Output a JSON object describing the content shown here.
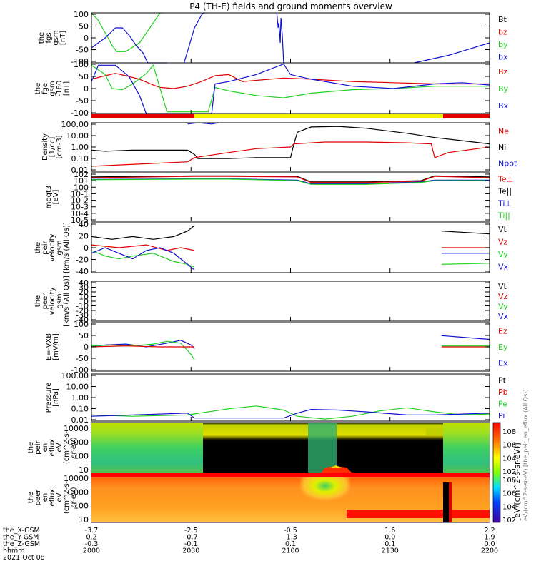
{
  "title": "P4 (TH-E) fields and ground moments overview",
  "footer": {
    "row_labels": [
      "the_X-GSM",
      "the_Y-GSM",
      "the_Z-GSM",
      "hhmm",
      "2021 Oct 08"
    ],
    "columns": [
      [
        "-3.7",
        "0.2",
        "-0.3",
        "2000"
      ],
      [
        "-2.5",
        "-0.7",
        "-0.1",
        "2030"
      ],
      [
        "-0.5",
        "-1.3",
        "0.1",
        "2100"
      ],
      [
        "1.6",
        "0.0",
        "0.1",
        "2130"
      ],
      [
        "2.2",
        "1.9",
        "0.0",
        "2200"
      ]
    ]
  },
  "colorbar": {
    "label": "[eV/(cm^2-s-sr-eV)]",
    "label_top": "eV/(cm^2-s-sr-eV) [the_peir_en_eflux (All Qs)]",
    "ticks_top": [
      "10^8",
      "10^6",
      "10^4",
      "10^2"
    ],
    "ticks_bottom": [
      "10^8",
      "10^6",
      "10^4",
      "10^2"
    ]
  },
  "colors": {
    "black": "#000000",
    "red": "#e00000",
    "green": "#20d020",
    "blue": "#1010d0",
    "yellow": "#f0f000"
  },
  "chart_data": [
    {
      "type": "line",
      "ylabel": [
        "the",
        "fgs",
        "gsm",
        "[nT]"
      ],
      "yticks": [
        "100",
        "50",
        "0",
        "-50",
        "-100"
      ],
      "ylim": [
        -100,
        100
      ],
      "legend": [
        {
          "name": "Bt",
          "color": "black"
        },
        {
          "name": "bz",
          "color": "red"
        },
        {
          "name": "by",
          "color": "green"
        },
        {
          "name": "bx",
          "color": "blue"
        }
      ],
      "series": [
        {
          "name": "by",
          "color": "green",
          "x": [
            0,
            10,
            20,
            30,
            37,
            50,
            70,
            80,
            90,
            100,
            106
          ],
          "values": [
            100,
            70,
            20,
            -30,
            -55,
            -55,
            -20,
            20,
            60,
            100,
            100
          ]
        },
        {
          "name": "bx",
          "color": "blue",
          "x": [
            0,
            20,
            35,
            45,
            55,
            65,
            75,
            82,
            90,
            100,
            110
          ],
          "values": [
            -40,
            0,
            40,
            40,
            10,
            -30,
            -60,
            -100,
            -100,
            -100,
            -100
          ]
        },
        {
          "name": "bx",
          "color": "blue",
          "x": [
            135,
            150,
            160,
            163,
            168
          ],
          "values": [
            -100,
            40,
            90,
            100,
            100
          ]
        },
        {
          "name": "bx",
          "color": "blue",
          "x": [
            270,
            272,
            273,
            275,
            276,
            278,
            280
          ],
          "values": [
            100,
            40,
            60,
            -20,
            80,
            10,
            -100
          ]
        },
        {
          "name": "bx",
          "color": "blue",
          "x": [
            470,
            520,
            580
          ],
          "values": [
            -100,
            -70,
            -20
          ]
        }
      ]
    },
    {
      "type": "line",
      "ylabel": [
        "the",
        "fge",
        "gsm",
        "-180",
        "[nT]"
      ],
      "yticks": [
        "100",
        "50",
        "0",
        "-50",
        "-100"
      ],
      "ylim": [
        -120,
        100
      ],
      "legend": [
        {
          "name": "Bz",
          "color": "red"
        },
        {
          "name": "By",
          "color": "green"
        },
        {
          "name": "Bx",
          "color": "blue"
        }
      ],
      "series": [
        {
          "name": "Bz",
          "color": "red",
          "x": [
            0,
            20,
            35,
            50,
            70,
            90,
            100,
            120,
            140,
            160,
            180,
            200,
            220,
            240,
            260,
            280,
            320,
            380,
            440,
            500,
            560,
            580
          ],
          "values": [
            30,
            45,
            55,
            45,
            30,
            5,
            -5,
            -10,
            0,
            20,
            45,
            50,
            20,
            25,
            30,
            35,
            30,
            20,
            15,
            10,
            10,
            10
          ]
        },
        {
          "name": "By",
          "color": "green",
          "x": [
            0,
            20,
            30,
            45,
            60,
            80,
            90,
            110,
            140,
            170,
            180,
            200,
            240,
            280,
            320,
            380,
            440,
            500,
            580
          ],
          "values": [
            90,
            50,
            -10,
            -15,
            10,
            55,
            90,
            -110,
            -110,
            -110,
            -5,
            -20,
            -40,
            -50,
            -30,
            -15,
            -10,
            0,
            0
          ]
        },
        {
          "name": "Bx",
          "color": "blue",
          "x": [
            0,
            10,
            35,
            55,
            70,
            80,
            100,
            140,
            175,
            180,
            200,
            240,
            280,
            290,
            320,
            380,
            440,
            500,
            540,
            580
          ],
          "values": [
            20,
            90,
            90,
            40,
            -40,
            -120,
            -120,
            -120,
            -120,
            10,
            20,
            50,
            95,
            50,
            30,
            0,
            -10,
            10,
            15,
            5
          ]
        }
      ]
    },
    {
      "type": "line",
      "ylabel": [
        "Density",
        "[1/cc]",
        "[cm-3]"
      ],
      "yticks": [
        "100.00",
        "10.00",
        "1.00",
        "0.10",
        "0.01"
      ],
      "ylog": true,
      "ylim": [
        0.005,
        200
      ],
      "legend": [
        {
          "name": "Ne",
          "color": "red"
        },
        {
          "name": "Ni",
          "color": "black"
        },
        {
          "name": "Npot",
          "color": "blue"
        }
      ],
      "series": [
        {
          "name": "Ni",
          "color": "black",
          "x": [
            0,
            20,
            60,
            100,
            140,
            150,
            155,
            200,
            240,
            290,
            295,
            300,
            320,
            360,
            400,
            460,
            500,
            540,
            580
          ],
          "values": [
            0.5,
            0.4,
            0.5,
            0.5,
            0.5,
            0.2,
            0.08,
            0.08,
            0.1,
            0.1,
            2,
            25,
            80,
            90,
            60,
            20,
            8,
            4,
            2
          ]
        },
        {
          "name": "Ne",
          "color": "red",
          "x": [
            0,
            40,
            100,
            140,
            150,
            200,
            240,
            290,
            295,
            340,
            400,
            460,
            495,
            500,
            520,
            580
          ],
          "values": [
            0.015,
            0.02,
            0.03,
            0.04,
            0.1,
            0.3,
            0.7,
            1.0,
            2,
            3,
            3,
            2.5,
            2,
            0.1,
            0.3,
            1
          ]
        },
        {
          "name": "Npot",
          "color": "blue",
          "x": [
            140,
            155,
            175,
            185
          ],
          "values": [
            150,
            200,
            150,
            200
          ]
        }
      ]
    },
    {
      "type": "line",
      "ylabel": [
        "moqt3",
        "[eV]"
      ],
      "yticks": [
        "10^2",
        "10^1",
        "10^0",
        "10^-1",
        "10^-2",
        "10^-3",
        "10^-4",
        "10^-5"
      ],
      "ylog": true,
      "ylim": [
        1e-05,
        1000
      ],
      "legend": [
        {
          "name": "Te⊥",
          "color": "red"
        },
        {
          "name": "Te||",
          "color": "black"
        },
        {
          "name": "Ti⊥",
          "color": "blue"
        },
        {
          "name": "Ti||",
          "color": "green"
        }
      ],
      "series": [
        {
          "name": "Te||",
          "color": "black",
          "x": [
            0,
            150,
            200,
            300,
            320,
            400,
            480,
            500,
            580
          ],
          "values": [
            200,
            300,
            300,
            250,
            30,
            30,
            50,
            300,
            200
          ]
        },
        {
          "name": "Te⊥",
          "color": "red",
          "x": [
            0,
            150,
            200,
            300,
            320,
            400,
            480,
            500,
            580
          ],
          "values": [
            150,
            250,
            250,
            200,
            25,
            25,
            40,
            250,
            150
          ]
        },
        {
          "name": "Ti⊥",
          "color": "blue",
          "x": [
            0,
            150,
            200,
            300,
            320,
            400,
            480,
            500,
            580
          ],
          "values": [
            80,
            100,
            100,
            60,
            15,
            15,
            30,
            60,
            60
          ]
        },
        {
          "name": "Ti||",
          "color": "green",
          "x": [
            0,
            150,
            200,
            300,
            320,
            400,
            480,
            500,
            580
          ],
          "values": [
            70,
            90,
            90,
            50,
            12,
            12,
            25,
            50,
            50
          ]
        }
      ]
    },
    {
      "type": "line",
      "ylabel": [
        "the",
        "peir",
        "velocity",
        "gsm",
        "[km/s (All Qs)]"
      ],
      "yticks": [
        "40",
        "20",
        "0",
        "-20",
        "-40"
      ],
      "ylim": [
        -45,
        45
      ],
      "legend": [
        {
          "name": "Vt",
          "color": "black"
        },
        {
          "name": "Vz",
          "color": "red"
        },
        {
          "name": "Vy",
          "color": "green"
        },
        {
          "name": "Vx",
          "color": "blue"
        }
      ],
      "series": [
        {
          "name": "Vt",
          "color": "black",
          "x": [
            0,
            30,
            60,
            90,
            120,
            140,
            150
          ],
          "values": [
            20,
            15,
            20,
            15,
            20,
            30,
            40
          ]
        },
        {
          "name": "Vz",
          "color": "red",
          "x": [
            0,
            40,
            80,
            110,
            130,
            150
          ],
          "values": [
            5,
            0,
            5,
            -5,
            0,
            -5
          ]
        },
        {
          "name": "Vy",
          "color": "green",
          "x": [
            0,
            20,
            40,
            60,
            90,
            120,
            140,
            150
          ],
          "values": [
            -5,
            -15,
            -20,
            -15,
            -10,
            -25,
            -30,
            -35
          ]
        },
        {
          "name": "Vx",
          "color": "blue",
          "x": [
            0,
            20,
            40,
            60,
            80,
            100,
            120,
            140,
            150
          ],
          "values": [
            -10,
            0,
            -10,
            -20,
            -5,
            0,
            -10,
            -30,
            -40
          ]
        },
        {
          "name": "Vt",
          "color": "black",
          "x": [
            510,
            580
          ],
          "values": [
            30,
            25
          ]
        },
        {
          "name": "Vz",
          "color": "red",
          "x": [
            510,
            580
          ],
          "values": [
            0,
            0
          ]
        },
        {
          "name": "Vx",
          "color": "blue",
          "x": [
            510,
            580
          ],
          "values": [
            -10,
            -10
          ]
        },
        {
          "name": "Vy",
          "color": "green",
          "x": [
            510,
            580
          ],
          "values": [
            -30,
            -28
          ]
        }
      ]
    },
    {
      "type": "line",
      "ylabel": [
        "the",
        "peer",
        "velocity",
        "gsm",
        "[km/s (All Qs)]"
      ],
      "yticks": [
        "40",
        "30",
        "20",
        "10",
        "0",
        "-10",
        "-20",
        "-30",
        "-40"
      ],
      "ylim": [
        -45,
        45
      ],
      "legend": [
        {
          "name": "Vt",
          "color": "black"
        },
        {
          "name": "Vz",
          "color": "red"
        },
        {
          "name": "Vy",
          "color": "green"
        },
        {
          "name": "Vx",
          "color": "blue"
        }
      ],
      "series": []
    },
    {
      "type": "line",
      "ylabel": [
        "E=-VXB",
        "[mV/m]"
      ],
      "yticks": [
        "100",
        "50",
        "0",
        "-50",
        "-100"
      ],
      "ylim": [
        -130,
        130
      ],
      "legend": [
        {
          "name": "Ez",
          "color": "red"
        },
        {
          "name": "Ey",
          "color": "green"
        },
        {
          "name": "Ex",
          "color": "blue"
        }
      ],
      "series": [
        {
          "name": "Ex",
          "color": "blue",
          "x": [
            0,
            20,
            50,
            80,
            110,
            130,
            145,
            150
          ],
          "values": [
            0,
            10,
            15,
            0,
            20,
            35,
            10,
            -10
          ]
        },
        {
          "name": "Ey",
          "color": "green",
          "x": [
            0,
            30,
            60,
            90,
            110,
            130,
            145,
            150
          ],
          "values": [
            5,
            10,
            5,
            15,
            30,
            20,
            -40,
            -70
          ]
        },
        {
          "name": "Ez",
          "color": "red",
          "x": [
            0,
            50,
            100,
            150
          ],
          "values": [
            0,
            5,
            0,
            0
          ]
        },
        {
          "name": "Ex",
          "color": "blue",
          "x": [
            510,
            580
          ],
          "values": [
            60,
            40
          ]
        },
        {
          "name": "Ey",
          "color": "green",
          "x": [
            510,
            580
          ],
          "values": [
            5,
            5
          ]
        },
        {
          "name": "Ez",
          "color": "red",
          "x": [
            510,
            580
          ],
          "values": [
            0,
            0
          ]
        }
      ]
    },
    {
      "type": "line",
      "ylabel": [
        "Pressure",
        "[nPa]"
      ],
      "yticks": [
        "100.00",
        "10.00",
        "1.00",
        "0.10",
        "0.01"
      ],
      "ylog": true,
      "ylim": [
        0.005,
        200
      ],
      "legend": [
        {
          "name": "Pt",
          "color": "black"
        },
        {
          "name": "Pb",
          "color": "red"
        },
        {
          "name": "Pe",
          "color": "green"
        },
        {
          "name": "Pi",
          "color": "blue"
        }
      ],
      "series": [
        {
          "name": "Pe",
          "color": "green",
          "x": [
            0,
            60,
            140,
            200,
            240,
            280,
            300,
            340,
            380,
            420,
            460,
            500,
            540,
            580
          ],
          "values": [
            0.02,
            0.015,
            0.02,
            0.08,
            0.15,
            0.06,
            0.015,
            0.008,
            0.015,
            0.05,
            0.1,
            0.04,
            0.02,
            0.025
          ]
        },
        {
          "name": "Pi",
          "color": "blue",
          "x": [
            0,
            60,
            140,
            150,
            200,
            280,
            300,
            320,
            360,
            400,
            460,
            500,
            580
          ],
          "values": [
            0.015,
            0.02,
            0.03,
            0.01,
            0.01,
            0.01,
            0.03,
            0.07,
            0.06,
            0.04,
            0.02,
            0.02,
            0.03
          ]
        }
      ]
    },
    {
      "type": "heatmap",
      "ylabel": [
        "the",
        "peir",
        "en",
        "eflux",
        "eV",
        "(cm^2-s-",
        "sr-eV)"
      ],
      "yticks": [
        "10000",
        "1000",
        "100",
        "10"
      ]
    },
    {
      "type": "heatmap",
      "ylabel": [
        "the",
        "peer",
        "en",
        "eflux",
        "eV",
        "(cm^2-s-",
        "sr-eV)"
      ],
      "yticks": [
        "10000",
        "1000",
        "100",
        "10"
      ]
    }
  ]
}
